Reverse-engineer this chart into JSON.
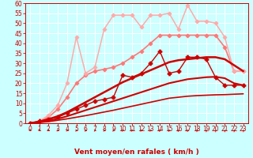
{
  "x": [
    0,
    1,
    2,
    3,
    4,
    5,
    6,
    7,
    8,
    9,
    10,
    11,
    12,
    13,
    14,
    15,
    16,
    17,
    18,
    19,
    20,
    21,
    22,
    23
  ],
  "series": [
    {
      "name": "smooth_bottom1",
      "color": "#cc0000",
      "linewidth": 1.2,
      "marker": null,
      "zorder": 3,
      "y": [
        0,
        0.4,
        0.8,
        1.5,
        2.2,
        3.0,
        3.8,
        4.7,
        5.6,
        6.5,
        7.5,
        8.5,
        9.5,
        10.5,
        11.5,
        12.5,
        13.0,
        13.5,
        13.8,
        14.0,
        14.2,
        14.3,
        14.5,
        14.7
      ]
    },
    {
      "name": "smooth_bottom2",
      "color": "#cc0000",
      "linewidth": 1.5,
      "marker": null,
      "zorder": 3,
      "y": [
        0,
        0.5,
        1.2,
        2.2,
        3.5,
        5.0,
        6.5,
        8.0,
        9.5,
        11.0,
        12.5,
        14.0,
        15.5,
        17.0,
        18.5,
        20.0,
        21.0,
        22.0,
        22.5,
        23.0,
        23.2,
        22.5,
        20.0,
        19.0
      ]
    },
    {
      "name": "smooth_upper_dark",
      "color": "#cc0000",
      "linewidth": 1.8,
      "marker": null,
      "zorder": 3,
      "y": [
        0,
        0.8,
        2.0,
        3.5,
        5.5,
        8.0,
        10.5,
        13.0,
        15.5,
        18.0,
        20.5,
        22.5,
        24.5,
        26.5,
        28.5,
        30.5,
        31.5,
        32.0,
        32.5,
        33.0,
        33.0,
        32.0,
        29.0,
        26.0
      ]
    },
    {
      "name": "jagged_cross_markers",
      "color": "#cc0000",
      "linewidth": 1.0,
      "marker": "P",
      "markersize": 3.5,
      "zorder": 4,
      "y": [
        0,
        1,
        2,
        3,
        5,
        7,
        9,
        11,
        12,
        13,
        24,
        23,
        25,
        30,
        36,
        25,
        26,
        33,
        33,
        32,
        23,
        19,
        19,
        19
      ]
    },
    {
      "name": "light_red_diamond",
      "color": "#ff7777",
      "linewidth": 1.2,
      "marker": "D",
      "markersize": 2.5,
      "zorder": 2,
      "y": [
        0,
        1,
        3,
        7,
        13,
        20,
        24,
        26,
        27,
        28,
        30,
        33,
        36,
        40,
        44,
        44,
        44,
        44,
        44,
        44,
        44,
        38,
        26,
        26
      ]
    },
    {
      "name": "pink_diamond",
      "color": "#ffaaaa",
      "linewidth": 1.1,
      "marker": "D",
      "markersize": 2.5,
      "zorder": 2,
      "y": [
        0,
        1,
        4,
        9,
        20,
        43,
        25,
        28,
        47,
        54,
        54,
        54,
        48,
        54,
        54,
        55,
        47,
        59,
        51,
        51,
        50,
        43,
        26,
        26
      ]
    }
  ],
  "arrow_angles": [
    45,
    45,
    20,
    10,
    5,
    0,
    0,
    0,
    0,
    0,
    0,
    0,
    0,
    0,
    -10,
    -10,
    -20,
    -20,
    -30,
    -45,
    -45,
    -45,
    -45,
    -45
  ],
  "xlabel": "Vent moyen/en rafales ( km/h )",
  "xlim": [
    -0.5,
    23.5
  ],
  "ylim": [
    0,
    60
  ],
  "yticks": [
    0,
    5,
    10,
    15,
    20,
    25,
    30,
    35,
    40,
    45,
    50,
    55,
    60
  ],
  "xticks": [
    0,
    1,
    2,
    3,
    4,
    5,
    6,
    7,
    8,
    9,
    10,
    11,
    12,
    13,
    14,
    15,
    16,
    17,
    18,
    19,
    20,
    21,
    22,
    23
  ],
  "bg_color": "#ccffff",
  "grid_color": "#ffffff",
  "text_color": "#cc0000",
  "tick_fontsize": 5.5,
  "xlabel_fontsize": 6.5
}
